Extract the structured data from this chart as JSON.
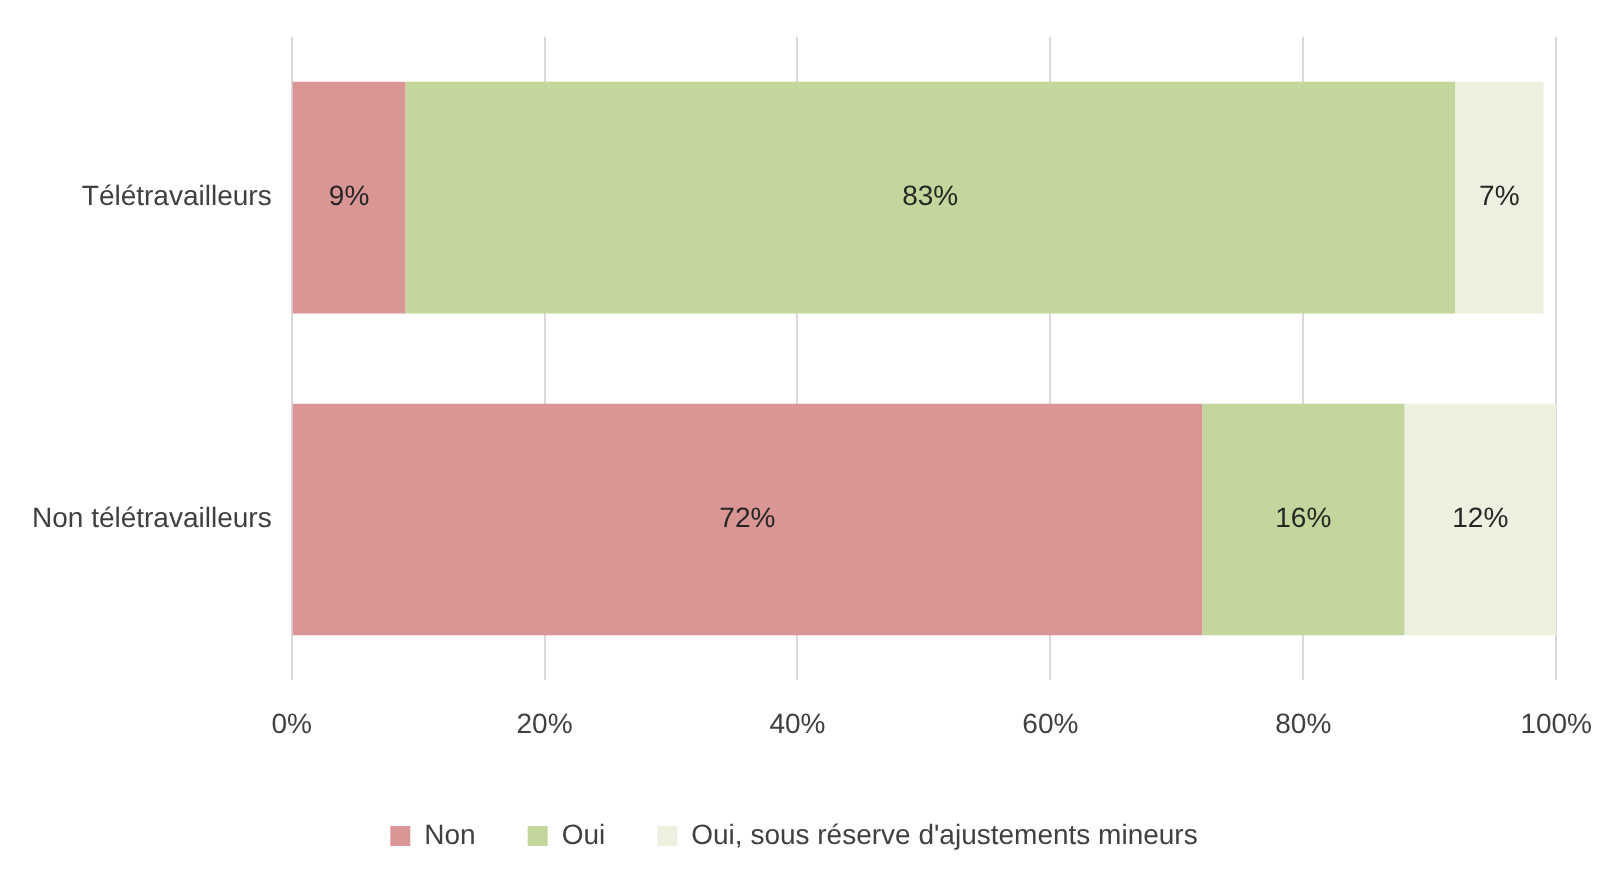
{
  "chart_data": {
    "type": "bar",
    "orientation": "horizontal",
    "stacked": true,
    "categories": [
      "Télétravailleurs",
      "Non télétravailleurs"
    ],
    "series": [
      {
        "name": "Non",
        "color": "#d99694",
        "values": [
          9,
          72
        ],
        "value_labels": [
          "9%",
          "72%"
        ]
      },
      {
        "name": "Oui",
        "color": "#c3d69b",
        "values": [
          83,
          16
        ],
        "value_labels": [
          "83%",
          "16%"
        ]
      },
      {
        "name": "Oui, sous réserve d'ajustements mineurs",
        "color": "#ebf1de",
        "values": [
          7,
          12
        ],
        "value_labels": [
          "7%",
          "12%"
        ]
      }
    ],
    "xlim": [
      0,
      100
    ],
    "xticks": [
      {
        "value": 0,
        "label": "0%"
      },
      {
        "value": 20,
        "label": "20%"
      },
      {
        "value": 40,
        "label": "40%"
      },
      {
        "value": 60,
        "label": "60%"
      },
      {
        "value": 80,
        "label": "80%"
      },
      {
        "value": 100,
        "label": "100%"
      }
    ],
    "grid": "x",
    "legend": "bottom"
  }
}
